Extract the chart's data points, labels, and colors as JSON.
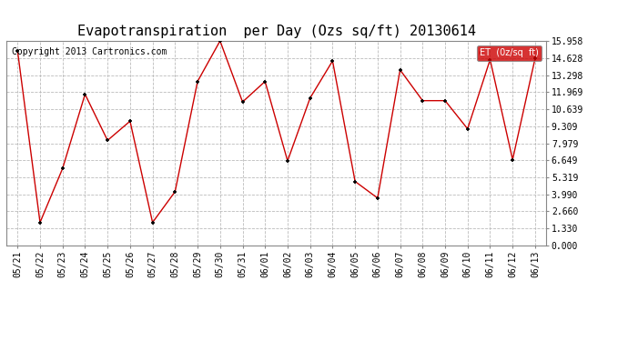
{
  "title": "Evapotranspiration  per Day (Ozs sq/ft) 20130614",
  "copyright": "Copyright 2013 Cartronics.com",
  "legend_label": "ET  (0z/sq  ft)",
  "x_labels": [
    "05/21",
    "05/22",
    "05/23",
    "05/24",
    "05/25",
    "05/26",
    "05/27",
    "05/28",
    "05/29",
    "05/30",
    "05/31",
    "06/01",
    "06/02",
    "06/03",
    "06/04",
    "06/05",
    "06/06",
    "06/07",
    "06/08",
    "06/09",
    "06/10",
    "06/11",
    "06/12",
    "06/13"
  ],
  "y_values": [
    15.2,
    1.8,
    6.0,
    11.8,
    8.2,
    9.7,
    1.8,
    4.2,
    12.8,
    15.958,
    11.2,
    12.8,
    6.6,
    11.5,
    14.4,
    5.0,
    3.7,
    13.7,
    11.3,
    11.3,
    9.1,
    14.5,
    6.7,
    14.6
  ],
  "y_ticks": [
    0.0,
    1.33,
    2.66,
    3.99,
    5.319,
    6.649,
    7.979,
    9.309,
    10.639,
    11.969,
    13.298,
    14.628,
    15.958
  ],
  "y_tick_labels": [
    "0.000",
    "1.330",
    "2.660",
    "3.990",
    "5.319",
    "6.649",
    "7.979",
    "9.309",
    "10.639",
    "11.969",
    "13.298",
    "14.628",
    "15.958"
  ],
  "ylim": [
    0.0,
    15.958
  ],
  "line_color": "#cc0000",
  "marker_color": "#000000",
  "background_color": "#ffffff",
  "grid_color": "#bbbbbb",
  "legend_bg": "#cc0000",
  "legend_text_color": "#ffffff",
  "title_fontsize": 11,
  "tick_fontsize": 7,
  "copyright_fontsize": 7
}
